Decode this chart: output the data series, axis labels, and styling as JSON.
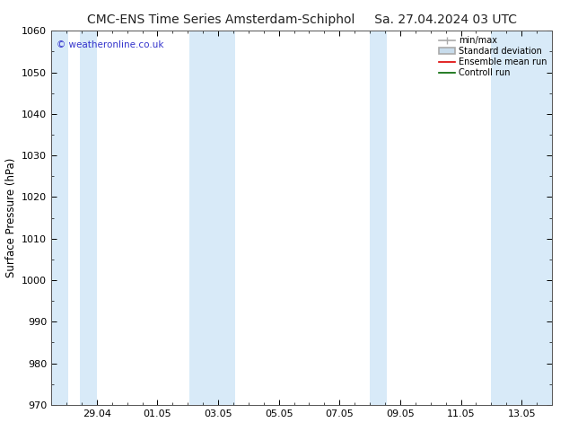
{
  "title_left": "CMC-ENS Time Series Amsterdam-Schiphol",
  "title_right": "Sa. 27.04.2024 03 UTC",
  "ylabel": "Surface Pressure (hPa)",
  "ylim": [
    970,
    1060
  ],
  "yticks": [
    970,
    980,
    990,
    1000,
    1010,
    1020,
    1030,
    1040,
    1050,
    1060
  ],
  "xlim_left": 0.0,
  "xlim_right": 16.5,
  "xtick_positions": [
    1.5,
    3.5,
    5.5,
    7.5,
    9.5,
    11.5,
    13.5,
    15.5
  ],
  "xtick_labels": [
    "29.04",
    "01.05",
    "03.05",
    "05.05",
    "07.05",
    "09.05",
    "11.05",
    "13.05"
  ],
  "band_color": "#d8eaf8",
  "band_ranges": [
    [
      0.0,
      0.55
    ],
    [
      0.95,
      1.5
    ],
    [
      4.55,
      5.55
    ],
    [
      5.55,
      6.05
    ],
    [
      10.5,
      11.05
    ],
    [
      14.5,
      16.5
    ]
  ],
  "watermark": "© weatheronline.co.uk",
  "watermark_color": "#3333cc",
  "background_color": "#ffffff",
  "title_fontsize": 10,
  "axis_label_fontsize": 8.5,
  "tick_fontsize": 8,
  "legend_min_max_color": "#aaaaaa",
  "legend_std_color": "#c8dcec",
  "legend_mean_color": "#dd0000",
  "legend_control_color": "#006600"
}
